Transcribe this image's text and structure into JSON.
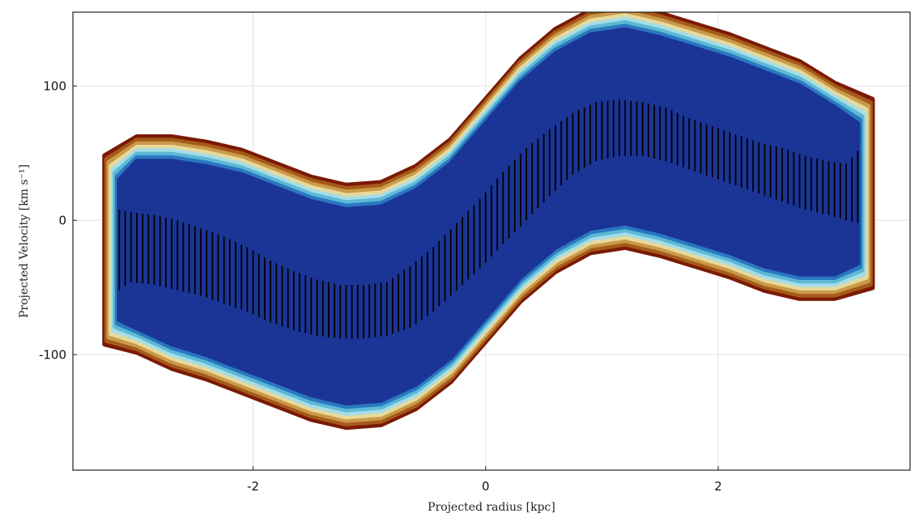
{
  "chart_data": {
    "type": "heatmap",
    "xlabel": "Projected radius [kpc]",
    "ylabel": "Projected Velocity [km s⁻¹]",
    "xlim": [
      -3.55,
      3.65
    ],
    "ylim": [
      -186,
      155
    ],
    "x_ticks": [
      {
        "value": -2,
        "label": "-2"
      },
      {
        "value": 0,
        "label": "0"
      },
      {
        "value": 2,
        "label": "2"
      }
    ],
    "y_ticks": [
      {
        "value": 100,
        "label": "100"
      },
      {
        "value": 0,
        "label": "0"
      },
      {
        "value": -100,
        "label": "-100"
      }
    ],
    "grid": true,
    "contour_colors": [
      "#7a1a05",
      "#a65a1a",
      "#c99a4a",
      "#e8d99a",
      "#a6dde6",
      "#5cb9d6",
      "#2a78c0",
      "#1b3596"
    ],
    "density_ridge": {
      "x": [
        -3.15,
        -3.0,
        -2.7,
        -2.4,
        -2.1,
        -1.8,
        -1.5,
        -1.2,
        -0.9,
        -0.6,
        -0.3,
        0.0,
        0.3,
        0.6,
        0.9,
        1.2,
        1.5,
        1.8,
        2.1,
        2.4,
        2.7,
        3.0,
        3.2
      ],
      "center": [
        -22,
        -18,
        -24,
        -30,
        -38,
        -48,
        -58,
        -64,
        -62,
        -50,
        -30,
        0,
        30,
        52,
        66,
        70,
        64,
        56,
        48,
        38,
        30,
        22,
        20
      ],
      "half_width": [
        52,
        62,
        68,
        70,
        72,
        72,
        72,
        72,
        72,
        72,
        72,
        72,
        72,
        72,
        72,
        72,
        72,
        72,
        72,
        72,
        70,
        62,
        52
      ]
    },
    "dispersion_bars": [
      {
        "x": -3.15,
        "low": -52,
        "high": 8
      },
      {
        "x": -3.05,
        "low": -46,
        "high": 6
      },
      {
        "x": -2.85,
        "low": -48,
        "high": 4
      },
      {
        "x": -2.65,
        "low": -52,
        "high": 0
      },
      {
        "x": -2.45,
        "low": -56,
        "high": -6
      },
      {
        "x": -2.25,
        "low": -62,
        "high": -12
      },
      {
        "x": -2.05,
        "low": -68,
        "high": -20
      },
      {
        "x": -1.85,
        "low": -76,
        "high": -30
      },
      {
        "x": -1.65,
        "low": -82,
        "high": -38
      },
      {
        "x": -1.45,
        "low": -86,
        "high": -44
      },
      {
        "x": -1.25,
        "low": -88,
        "high": -48
      },
      {
        "x": -1.05,
        "low": -88,
        "high": -48
      },
      {
        "x": -0.85,
        "low": -86,
        "high": -46
      },
      {
        "x": -0.65,
        "low": -80,
        "high": -34
      },
      {
        "x": -0.45,
        "low": -68,
        "high": -20
      },
      {
        "x": -0.25,
        "low": -52,
        "high": -2
      },
      {
        "x": -0.05,
        "low": -36,
        "high": 16
      },
      {
        "x": 0.15,
        "low": -18,
        "high": 36
      },
      {
        "x": 0.35,
        "low": 0,
        "high": 54
      },
      {
        "x": 0.55,
        "low": 18,
        "high": 68
      },
      {
        "x": 0.75,
        "low": 34,
        "high": 80
      },
      {
        "x": 0.95,
        "low": 44,
        "high": 88
      },
      {
        "x": 1.15,
        "low": 48,
        "high": 90
      },
      {
        "x": 1.35,
        "low": 48,
        "high": 88
      },
      {
        "x": 1.55,
        "low": 44,
        "high": 84
      },
      {
        "x": 1.75,
        "low": 38,
        "high": 76
      },
      {
        "x": 1.95,
        "low": 32,
        "high": 70
      },
      {
        "x": 2.15,
        "low": 26,
        "high": 64
      },
      {
        "x": 2.35,
        "low": 20,
        "high": 58
      },
      {
        "x": 2.55,
        "low": 14,
        "high": 54
      },
      {
        "x": 2.75,
        "low": 8,
        "high": 48
      },
      {
        "x": 2.95,
        "low": 4,
        "high": 44
      },
      {
        "x": 3.1,
        "low": 0,
        "high": 42
      },
      {
        "x": 3.2,
        "low": -2,
        "high": 52
      }
    ]
  }
}
